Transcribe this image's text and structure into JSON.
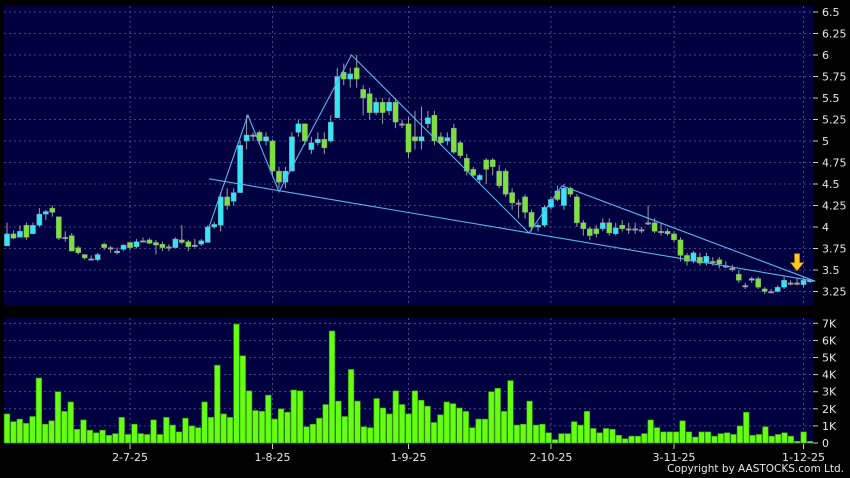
{
  "copyright": "Copyright by AASTOCKS.com Ltd.",
  "colors": {
    "background": "#000000",
    "panel": "#000040",
    "grid": "#5a5a9a",
    "up": "#33e5f5",
    "down": "#7ee03a",
    "doji": "#a0a0a0",
    "volume": "#66ff11",
    "trendline": "#5ab4e8",
    "arrow": "#ffc820"
  },
  "chart_data": [
    {
      "type": "candlestick",
      "grid": true,
      "ylim": [
        3.1,
        6.57
      ],
      "y_ticks": [
        "6.5",
        "6.25",
        "6",
        "5.75",
        "5.5",
        "5.25",
        "5",
        "4.75",
        "4.5",
        "4.25",
        "4",
        "3.75",
        "3.5",
        "3.25"
      ],
      "x_ticks": [
        {
          "label": "2-7-25",
          "index": 19
        },
        {
          "label": "1-8-25",
          "index": 41
        },
        {
          "label": "1-9-25",
          "index": 62
        },
        {
          "label": "2-10-25",
          "index": 84
        },
        {
          "label": "3-11-25",
          "index": 103
        },
        {
          "label": "1-12-25",
          "index": 123
        }
      ],
      "ohlc": [
        [
          3.78,
          4.05,
          3.78,
          3.92
        ],
        [
          3.92,
          3.96,
          3.86,
          3.87
        ],
        [
          3.88,
          4.02,
          3.88,
          3.95
        ],
        [
          4.02,
          4.05,
          3.85,
          3.88
        ],
        [
          3.92,
          4.05,
          3.92,
          4.02
        ],
        [
          4.02,
          4.22,
          4.0,
          4.15
        ],
        [
          4.15,
          4.2,
          4.08,
          4.18
        ],
        [
          4.22,
          4.25,
          4.12,
          4.17
        ],
        [
          4.12,
          4.12,
          3.85,
          3.87
        ],
        [
          3.88,
          3.95,
          3.83,
          3.88
        ],
        [
          3.9,
          3.93,
          3.72,
          3.72
        ],
        [
          3.76,
          3.78,
          3.68,
          3.7
        ],
        [
          3.68,
          3.68,
          3.62,
          3.64
        ],
        [
          3.63,
          3.67,
          3.61,
          3.63
        ],
        [
          3.62,
          3.7,
          3.6,
          3.68
        ],
        [
          3.8,
          3.82,
          3.73,
          3.76
        ],
        [
          3.76,
          3.78,
          3.7,
          3.76
        ],
        [
          3.7,
          3.76,
          3.68,
          3.72
        ],
        [
          3.74,
          3.8,
          3.72,
          3.79
        ],
        [
          3.82,
          3.82,
          3.73,
          3.76
        ],
        [
          3.77,
          3.86,
          3.75,
          3.83
        ],
        [
          3.84,
          3.88,
          3.82,
          3.84
        ],
        [
          3.85,
          3.87,
          3.8,
          3.81
        ],
        [
          3.82,
          3.85,
          3.68,
          3.79
        ],
        [
          3.8,
          3.83,
          3.72,
          3.76
        ],
        [
          3.77,
          3.8,
          3.72,
          3.77
        ],
        [
          3.76,
          3.88,
          3.76,
          3.86
        ],
        [
          3.85,
          4.02,
          3.8,
          3.82
        ],
        [
          3.83,
          3.85,
          3.72,
          3.77
        ],
        [
          3.79,
          3.86,
          3.76,
          3.79
        ],
        [
          3.8,
          3.86,
          3.78,
          3.84
        ],
        [
          3.82,
          4.02,
          3.82,
          4.0
        ],
        [
          4.0,
          4.06,
          3.98,
          4.03
        ],
        [
          4.02,
          4.4,
          3.95,
          4.35
        ],
        [
          4.35,
          4.45,
          4.2,
          4.25
        ],
        [
          4.3,
          4.45,
          4.25,
          4.4
        ],
        [
          4.4,
          5.0,
          4.4,
          4.95
        ],
        [
          5.0,
          5.3,
          4.9,
          5.07
        ],
        [
          5.07,
          5.1,
          5.0,
          5.07
        ],
        [
          5.1,
          5.12,
          4.98,
          5.0
        ],
        [
          5.0,
          5.1,
          4.95,
          5.05
        ],
        [
          5.0,
          5.02,
          4.6,
          4.65
        ],
        [
          4.65,
          4.7,
          4.45,
          4.52
        ],
        [
          4.52,
          4.7,
          4.45,
          4.65
        ],
        [
          4.65,
          5.1,
          4.65,
          5.05
        ],
        [
          5.1,
          5.25,
          5.05,
          5.2
        ],
        [
          5.2,
          5.2,
          4.95,
          5.0
        ],
        [
          4.9,
          5.05,
          4.85,
          4.98
        ],
        [
          4.98,
          5.1,
          4.95,
          5.02
        ],
        [
          5.02,
          5.1,
          4.85,
          4.92
        ],
        [
          5.0,
          5.3,
          4.98,
          5.22
        ],
        [
          5.27,
          5.85,
          5.27,
          5.75
        ],
        [
          5.8,
          5.9,
          5.65,
          5.72
        ],
        [
          5.72,
          5.85,
          5.62,
          5.78
        ],
        [
          5.85,
          6.0,
          5.62,
          5.72
        ],
        [
          5.6,
          5.65,
          5.3,
          5.5
        ],
        [
          5.55,
          5.62,
          5.25,
          5.33
        ],
        [
          5.33,
          5.5,
          5.3,
          5.45
        ],
        [
          5.45,
          5.5,
          5.2,
          5.33
        ],
        [
          5.35,
          5.5,
          5.3,
          5.45
        ],
        [
          5.45,
          5.5,
          5.15,
          5.22
        ],
        [
          5.2,
          5.25,
          5.15,
          5.2
        ],
        [
          5.2,
          5.28,
          4.8,
          4.87
        ],
        [
          5.05,
          5.35,
          4.9,
          5.0
        ],
        [
          5.0,
          5.4,
          4.9,
          5.05
        ],
        [
          5.2,
          5.35,
          5.15,
          5.27
        ],
        [
          5.3,
          5.35,
          4.95,
          5.0
        ],
        [
          5.05,
          5.1,
          4.95,
          4.98
        ],
        [
          5.0,
          5.1,
          4.95,
          5.04
        ],
        [
          5.15,
          5.2,
          4.85,
          4.87
        ],
        [
          4.98,
          5.0,
          4.8,
          4.83
        ],
        [
          4.8,
          4.85,
          4.6,
          4.65
        ],
        [
          4.67,
          4.7,
          4.58,
          4.6
        ],
        [
          4.55,
          4.62,
          4.5,
          4.6
        ],
        [
          4.78,
          4.8,
          4.5,
          4.67
        ],
        [
          4.78,
          4.8,
          4.6,
          4.7
        ],
        [
          4.65,
          4.72,
          4.45,
          4.48
        ],
        [
          4.65,
          4.68,
          4.35,
          4.38
        ],
        [
          4.4,
          4.45,
          4.2,
          4.28
        ],
        [
          4.28,
          4.32,
          4.1,
          4.28
        ],
        [
          4.35,
          4.38,
          4.1,
          4.17
        ],
        [
          4.17,
          4.2,
          3.95,
          4.0
        ],
        [
          4.0,
          4.05,
          3.95,
          4.02
        ],
        [
          4.02,
          4.25,
          4.0,
          4.23
        ],
        [
          4.23,
          4.35,
          4.2,
          4.32
        ],
        [
          4.42,
          4.48,
          4.3,
          4.32
        ],
        [
          4.25,
          4.5,
          4.2,
          4.45
        ],
        [
          4.45,
          4.47,
          4.35,
          4.38
        ],
        [
          4.35,
          4.38,
          4.0,
          4.05
        ],
        [
          4.05,
          4.08,
          3.9,
          3.98
        ],
        [
          3.98,
          4.0,
          3.85,
          3.9
        ],
        [
          3.98,
          4.02,
          3.88,
          3.92
        ],
        [
          3.98,
          4.1,
          3.95,
          4.05
        ],
        [
          4.05,
          4.1,
          3.9,
          3.93
        ],
        [
          3.92,
          4.05,
          3.9,
          3.99
        ],
        [
          4.02,
          4.08,
          3.95,
          3.98
        ],
        [
          3.98,
          4.05,
          3.92,
          3.98
        ],
        [
          3.98,
          4.05,
          3.92,
          3.98
        ],
        [
          3.97,
          4.0,
          3.93,
          3.97
        ],
        [
          4.05,
          4.25,
          4.02,
          4.05
        ],
        [
          4.05,
          4.1,
          3.93,
          3.95
        ],
        [
          3.95,
          4.05,
          3.9,
          3.95
        ],
        [
          3.95,
          3.98,
          3.9,
          3.92
        ],
        [
          3.92,
          3.95,
          3.82,
          3.85
        ],
        [
          3.85,
          3.88,
          3.6,
          3.67
        ],
        [
          3.67,
          3.7,
          3.55,
          3.6
        ],
        [
          3.6,
          3.72,
          3.58,
          3.7
        ],
        [
          3.65,
          3.7,
          3.55,
          3.58
        ],
        [
          3.58,
          3.7,
          3.55,
          3.66
        ],
        [
          3.6,
          3.65,
          3.55,
          3.6
        ],
        [
          3.62,
          3.65,
          3.52,
          3.57
        ],
        [
          3.55,
          3.6,
          3.52,
          3.55
        ],
        [
          3.52,
          3.56,
          3.48,
          3.52
        ],
        [
          3.45,
          3.5,
          3.35,
          3.38
        ],
        [
          3.32,
          3.35,
          3.28,
          3.32
        ],
        [
          3.38,
          3.42,
          3.35,
          3.4
        ],
        [
          3.4,
          3.42,
          3.28,
          3.3
        ],
        [
          3.28,
          3.3,
          3.22,
          3.25
        ],
        [
          3.25,
          3.28,
          3.23,
          3.25
        ],
        [
          3.25,
          3.32,
          3.24,
          3.3
        ],
        [
          3.3,
          3.42,
          3.28,
          3.38
        ],
        [
          3.35,
          3.38,
          3.32,
          3.35
        ],
        [
          3.35,
          3.4,
          3.32,
          3.35
        ],
        [
          3.33,
          3.42,
          3.3,
          3.38
        ],
        [
          3.37,
          3.4,
          3.35,
          3.38
        ]
      ],
      "trendlines": [
        {
          "kind": "zigzag",
          "points": [
            [
              31.2,
              4.0
            ],
            [
              37.2,
              5.3
            ],
            [
              42,
              4.41
            ],
            [
              53.2,
              6.0
            ],
            [
              80.6,
              3.93
            ],
            [
              85.7,
              4.48
            ]
          ]
        },
        {
          "kind": "upper",
          "points": [
            [
              85.7,
              4.48
            ],
            [
              124.8,
              3.37
            ]
          ]
        },
        {
          "kind": "lower",
          "points": [
            [
              31.2,
              4.56
            ],
            [
              124.8,
              3.37
            ]
          ]
        }
      ],
      "marker": {
        "kind": "down-arrow",
        "index": 122,
        "price": 3.48
      }
    },
    {
      "type": "bar",
      "grid": true,
      "ylim": [
        0,
        7.3
      ],
      "y_ticks": [
        "7K",
        "6K",
        "5K",
        "4K",
        "3K",
        "2K",
        "1K",
        "0"
      ],
      "unit": "K",
      "values": [
        1.7,
        1.25,
        1.4,
        1.15,
        1.55,
        3.8,
        1.1,
        1.3,
        3.0,
        1.85,
        2.4,
        0.8,
        1.35,
        0.75,
        0.6,
        0.75,
        0.45,
        0.55,
        1.5,
        0.5,
        1.1,
        0.55,
        0.5,
        1.35,
        0.5,
        1.5,
        1.05,
        0.65,
        1.45,
        1.0,
        0.9,
        2.4,
        1.5,
        4.55,
        1.7,
        1.5,
        6.95,
        5.1,
        3.05,
        1.9,
        1.85,
        2.8,
        1.4,
        2.0,
        1.8,
        3.1,
        3.05,
        0.95,
        1.1,
        1.45,
        2.25,
        6.55,
        2.45,
        1.55,
        4.3,
        2.45,
        0.95,
        0.9,
        2.6,
        2.05,
        1.7,
        3.05,
        2.25,
        1.7,
        3.05,
        2.5,
        2.15,
        1.2,
        1.65,
        2.4,
        2.3,
        2.05,
        1.85,
        0.9,
        1.4,
        1.4,
        3.0,
        3.2,
        1.85,
        3.65,
        1.05,
        1.1,
        2.45,
        1.05,
        1.1,
        0.6,
        0.2,
        0.55,
        0.55,
        1.25,
        1.05,
        1.85,
        0.85,
        0.6,
        0.85,
        0.8,
        0.45,
        0.25,
        0.4,
        0.4,
        0.55,
        1.35,
        0.9,
        0.65,
        0.65,
        0.65,
        1.3,
        0.65,
        0.35,
        0.65,
        0.65,
        0.4,
        0.55,
        0.6,
        0.5,
        1.0,
        1.8,
        0.45,
        0.5,
        0.95,
        0.4,
        0.5,
        0.6,
        0.4,
        0.1,
        0.65,
        0.1
      ]
    }
  ]
}
